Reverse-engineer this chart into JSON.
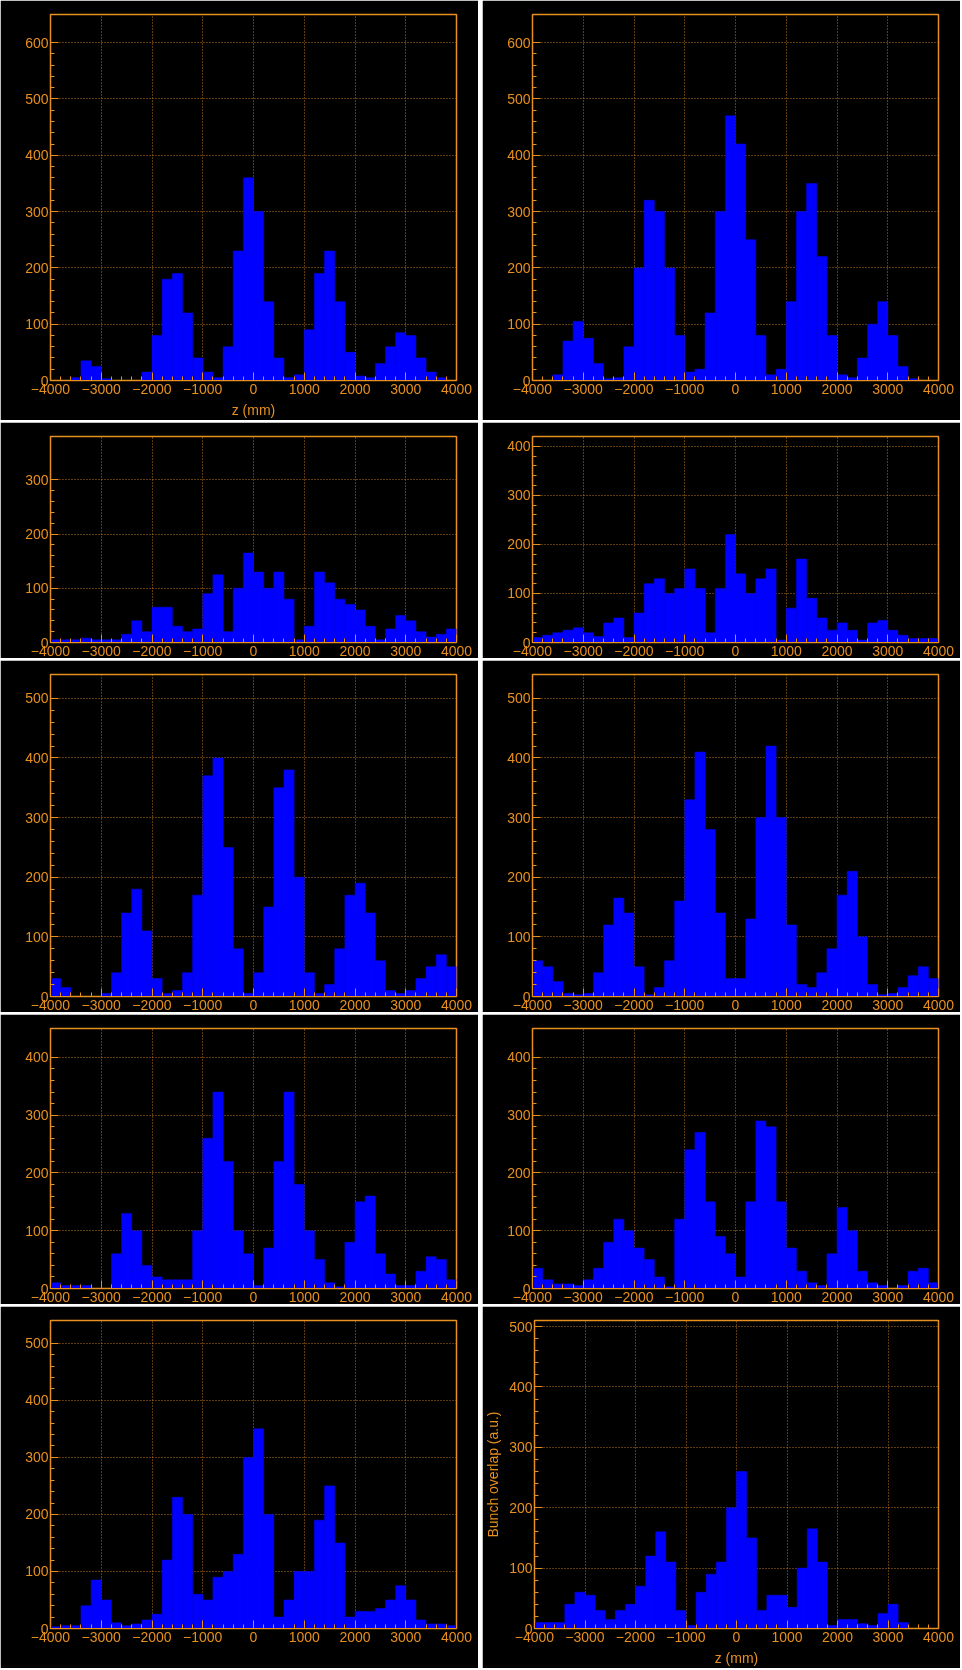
{
  "chart_data": [
    {
      "type": "histogram",
      "xlabel": "z (mm)",
      "color": "#0000ff",
      "grid": true,
      "xlim": [
        -4000,
        4000
      ],
      "xticks": [
        -4000,
        -3000,
        -2000,
        -1000,
        0,
        1000,
        2000,
        3000,
        4000
      ],
      "ylim": [
        0,
        650
      ],
      "yticks": [
        0,
        100,
        200,
        300,
        400,
        500,
        600
      ],
      "bins": [
        -4000,
        -3800,
        -3600,
        -3400,
        -3200,
        -3000,
        -2800,
        -2600,
        -2400,
        -2200,
        -2000,
        -1800,
        -1600,
        -1400,
        -1200,
        -1000,
        -800,
        -600,
        -400,
        -200,
        0,
        200,
        400,
        600,
        800,
        1000,
        1200,
        1400,
        1600,
        1800,
        2000,
        2200,
        2400,
        2600,
        2800,
        3000,
        3200,
        3400,
        3600,
        3800,
        4000
      ],
      "values": [
        0,
        0,
        5,
        35,
        25,
        3,
        0,
        0,
        0,
        15,
        80,
        180,
        190,
        120,
        40,
        15,
        5,
        60,
        230,
        360,
        300,
        140,
        40,
        5,
        10,
        90,
        190,
        230,
        140,
        50,
        8,
        5,
        30,
        60,
        85,
        80,
        40,
        15,
        5,
        0
      ]
    },
    {
      "type": "histogram",
      "color": "#0000ff",
      "grid": true,
      "xlim": [
        -4000,
        4000
      ],
      "xticks": [
        -4000,
        -3000,
        -2000,
        -1000,
        0,
        1000,
        2000,
        3000,
        4000
      ],
      "ylim": [
        0,
        650
      ],
      "yticks": [
        0,
        100,
        200,
        300,
        400,
        500,
        600
      ],
      "bins": [
        -4000,
        -3800,
        -3600,
        -3400,
        -3200,
        -3000,
        -2800,
        -2600,
        -2400,
        -2200,
        -2000,
        -1800,
        -1600,
        -1400,
        -1200,
        -1000,
        -800,
        -600,
        -400,
        -200,
        0,
        200,
        400,
        600,
        800,
        1000,
        1200,
        1400,
        1600,
        1800,
        2000,
        2200,
        2400,
        2600,
        2800,
        3000,
        3200,
        3400,
        3600,
        3800,
        4000
      ],
      "values": [
        0,
        0,
        10,
        70,
        105,
        75,
        30,
        3,
        5,
        60,
        200,
        320,
        300,
        200,
        80,
        15,
        20,
        120,
        300,
        470,
        420,
        250,
        80,
        10,
        20,
        140,
        300,
        350,
        220,
        80,
        10,
        5,
        40,
        100,
        140,
        80,
        25,
        3,
        0,
        0
      ]
    },
    {
      "type": "histogram",
      "color": "#0000ff",
      "grid": true,
      "xlim": [
        -4000,
        4000
      ],
      "xticks": [
        -4000,
        -3000,
        -2000,
        -1000,
        0,
        1000,
        2000,
        3000,
        4000
      ],
      "ylim": [
        0,
        380
      ],
      "yticks": [
        0,
        100,
        200,
        300
      ],
      "bins": [
        -4000,
        -3800,
        -3600,
        -3400,
        -3200,
        -3000,
        -2800,
        -2600,
        -2400,
        -2200,
        -2000,
        -1800,
        -1600,
        -1400,
        -1200,
        -1000,
        -800,
        -600,
        -400,
        -200,
        0,
        200,
        400,
        600,
        800,
        1000,
        1200,
        1400,
        1600,
        1800,
        2000,
        2200,
        2400,
        2600,
        2800,
        3000,
        3200,
        3400,
        3600,
        3800,
        4000
      ],
      "values": [
        5,
        5,
        5,
        8,
        5,
        5,
        5,
        15,
        40,
        20,
        65,
        65,
        30,
        20,
        25,
        90,
        125,
        20,
        100,
        165,
        130,
        100,
        130,
        80,
        5,
        30,
        130,
        110,
        80,
        70,
        60,
        30,
        5,
        25,
        50,
        40,
        20,
        10,
        15,
        25
      ]
    },
    {
      "type": "histogram",
      "color": "#0000ff",
      "grid": true,
      "xlim": [
        -4000,
        4000
      ],
      "xticks": [
        -4000,
        -3000,
        -2000,
        -1000,
        0,
        1000,
        2000,
        3000,
        4000
      ],
      "ylim": [
        0,
        420
      ],
      "yticks": [
        0,
        100,
        200,
        300,
        400
      ],
      "bins": [
        -4000,
        -3800,
        -3600,
        -3400,
        -3200,
        -3000,
        -2800,
        -2600,
        -2400,
        -2200,
        -2000,
        -1800,
        -1600,
        -1400,
        -1200,
        -1000,
        -800,
        -600,
        -400,
        -200,
        0,
        200,
        400,
        600,
        800,
        1000,
        1200,
        1400,
        1600,
        1800,
        2000,
        2200,
        2400,
        2600,
        2800,
        3000,
        3200,
        3400,
        3600,
        3800,
        4000
      ],
      "values": [
        10,
        15,
        20,
        25,
        30,
        20,
        12,
        40,
        50,
        10,
        60,
        120,
        130,
        100,
        110,
        150,
        110,
        20,
        110,
        220,
        140,
        100,
        130,
        150,
        5,
        70,
        170,
        90,
        50,
        25,
        40,
        25,
        5,
        40,
        45,
        25,
        15,
        8,
        8,
        8
      ]
    },
    {
      "type": "histogram",
      "color": "#0000ff",
      "grid": true,
      "xlim": [
        -4000,
        4000
      ],
      "xticks": [
        -4000,
        -3000,
        -2000,
        -1000,
        0,
        1000,
        2000,
        3000,
        4000
      ],
      "ylim": [
        0,
        540
      ],
      "yticks": [
        0,
        100,
        200,
        300,
        400,
        500
      ],
      "bins": [
        -4000,
        -3800,
        -3600,
        -3400,
        -3200,
        -3000,
        -2800,
        -2600,
        -2400,
        -2200,
        -2000,
        -1800,
        -1600,
        -1400,
        -1200,
        -1000,
        -800,
        -600,
        -400,
        -200,
        0,
        200,
        400,
        600,
        800,
        1000,
        1200,
        1400,
        1600,
        1800,
        2000,
        2200,
        2400,
        2600,
        2800,
        3000,
        3200,
        3400,
        3600,
        3800,
        4000
      ],
      "values": [
        30,
        15,
        0,
        0,
        0,
        5,
        40,
        140,
        180,
        110,
        30,
        5,
        10,
        40,
        170,
        370,
        400,
        250,
        80,
        5,
        40,
        150,
        350,
        380,
        200,
        40,
        5,
        20,
        80,
        170,
        190,
        140,
        60,
        10,
        5,
        10,
        30,
        50,
        70,
        50
      ]
    },
    {
      "type": "histogram",
      "color": "#0000ff",
      "grid": true,
      "xlim": [
        -4000,
        4000
      ],
      "xticks": [
        -4000,
        -3000,
        -2000,
        -1000,
        0,
        1000,
        2000,
        3000,
        4000
      ],
      "ylim": [
        0,
        540
      ],
      "yticks": [
        0,
        100,
        200,
        300,
        400,
        500
      ],
      "bins": [
        -4000,
        -3800,
        -3600,
        -3400,
        -3200,
        -3000,
        -2800,
        -2600,
        -2400,
        -2200,
        -2000,
        -1800,
        -1600,
        -1400,
        -1200,
        -1000,
        -800,
        -600,
        -400,
        -200,
        0,
        200,
        400,
        600,
        800,
        1000,
        1200,
        1400,
        1600,
        1800,
        2000,
        2200,
        2400,
        2600,
        2800,
        3000,
        3200,
        3400,
        3600,
        3800,
        4000
      ],
      "values": [
        60,
        50,
        25,
        5,
        3,
        5,
        40,
        120,
        165,
        140,
        50,
        3,
        15,
        60,
        160,
        330,
        410,
        280,
        140,
        30,
        30,
        130,
        300,
        420,
        300,
        120,
        20,
        15,
        40,
        80,
        170,
        210,
        100,
        20,
        3,
        5,
        15,
        35,
        50,
        30
      ]
    },
    {
      "type": "histogram",
      "color": "#0000ff",
      "grid": true,
      "xlim": [
        -4000,
        4000
      ],
      "xticks": [
        -4000,
        -3000,
        -2000,
        -1000,
        0,
        1000,
        2000,
        3000,
        4000
      ],
      "ylim": [
        0,
        450
      ],
      "yticks": [
        0,
        100,
        200,
        300,
        400
      ],
      "bins": [
        -4000,
        -3800,
        -3600,
        -3400,
        -3200,
        -3000,
        -2800,
        -2600,
        -2400,
        -2200,
        -2000,
        -1800,
        -1600,
        -1400,
        -1200,
        -1000,
        -800,
        -600,
        -400,
        -200,
        0,
        200,
        400,
        600,
        800,
        1000,
        1200,
        1400,
        1600,
        1800,
        2000,
        2200,
        2400,
        2600,
        2800,
        3000,
        3200,
        3400,
        3600,
        3800,
        4000
      ],
      "values": [
        10,
        5,
        5,
        5,
        0,
        0,
        60,
        130,
        100,
        40,
        20,
        15,
        15,
        15,
        100,
        260,
        340,
        220,
        100,
        60,
        5,
        70,
        220,
        340,
        180,
        100,
        50,
        10,
        3,
        80,
        150,
        160,
        60,
        25,
        5,
        5,
        30,
        55,
        50,
        15
      ]
    },
    {
      "type": "histogram",
      "color": "#0000ff",
      "grid": true,
      "xlim": [
        -4000,
        4000
      ],
      "xticks": [
        -4000,
        -3000,
        -2000,
        -1000,
        0,
        1000,
        2000,
        3000,
        4000
      ],
      "ylim": [
        0,
        450
      ],
      "yticks": [
        0,
        100,
        200,
        300,
        400
      ],
      "bins": [
        -4000,
        -3800,
        -3600,
        -3400,
        -3200,
        -3000,
        -2800,
        -2600,
        -2400,
        -2200,
        -2000,
        -1800,
        -1600,
        -1400,
        -1200,
        -1000,
        -800,
        -600,
        -400,
        -200,
        0,
        200,
        400,
        600,
        800,
        1000,
        1200,
        1400,
        1600,
        1800,
        2000,
        2200,
        2400,
        2600,
        2800,
        3000,
        3200,
        3400,
        3600,
        3800,
        4000
      ],
      "values": [
        35,
        15,
        8,
        8,
        5,
        15,
        35,
        80,
        120,
        100,
        70,
        50,
        20,
        3,
        120,
        240,
        270,
        150,
        90,
        60,
        20,
        150,
        290,
        280,
        150,
        70,
        30,
        10,
        5,
        60,
        140,
        100,
        30,
        10,
        5,
        0,
        5,
        30,
        35,
        10
      ]
    },
    {
      "type": "histogram",
      "color": "#0000ff",
      "grid": true,
      "xlim": [
        -4000,
        4000
      ],
      "xticks": [
        -4000,
        -3000,
        -2000,
        -1000,
        0,
        1000,
        2000,
        3000,
        4000
      ],
      "ylim": [
        0,
        540
      ],
      "yticks": [
        0,
        100,
        200,
        300,
        400,
        500
      ],
      "bins": [
        -4000,
        -3800,
        -3600,
        -3400,
        -3200,
        -3000,
        -2800,
        -2600,
        -2400,
        -2200,
        -2000,
        -1800,
        -1600,
        -1400,
        -1200,
        -1000,
        -800,
        -600,
        -400,
        -200,
        0,
        200,
        400,
        600,
        800,
        1000,
        1200,
        1400,
        1600,
        1800,
        2000,
        2200,
        2400,
        2600,
        2800,
        3000,
        3200,
        3400,
        3600,
        3800,
        4000
      ],
      "values": [
        3,
        5,
        5,
        40,
        85,
        50,
        10,
        5,
        8,
        15,
        25,
        120,
        230,
        200,
        60,
        50,
        90,
        100,
        130,
        300,
        350,
        200,
        20,
        50,
        100,
        100,
        190,
        250,
        150,
        20,
        30,
        30,
        35,
        50,
        75,
        50,
        15,
        8,
        8,
        5
      ]
    },
    {
      "type": "histogram",
      "xlabel": "z (mm)",
      "ylabel": "Bunch overlap (a.u.)",
      "color": "#0000ff",
      "grid": true,
      "xlim": [
        -4000,
        4000
      ],
      "xticks": [
        -4000,
        -3000,
        -2000,
        -1000,
        0,
        1000,
        2000,
        3000,
        4000
      ],
      "ylim": [
        0,
        510
      ],
      "yticks": [
        0,
        100,
        200,
        300,
        400,
        500
      ],
      "bins": [
        -4000,
        -3800,
        -3600,
        -3400,
        -3200,
        -3000,
        -2800,
        -2600,
        -2400,
        -2200,
        -2000,
        -1800,
        -1600,
        -1400,
        -1200,
        -1000,
        -800,
        -600,
        -400,
        -200,
        0,
        200,
        400,
        600,
        800,
        1000,
        1200,
        1400,
        1600,
        1800,
        2000,
        2200,
        2400,
        2600,
        2800,
        3000,
        3200,
        3400,
        3600,
        3800,
        4000
      ],
      "values": [
        10,
        10,
        10,
        40,
        60,
        55,
        30,
        15,
        30,
        40,
        70,
        120,
        160,
        110,
        30,
        5,
        60,
        90,
        110,
        200,
        260,
        150,
        30,
        55,
        55,
        35,
        100,
        165,
        110,
        5,
        15,
        15,
        8,
        5,
        25,
        40,
        10,
        0,
        0,
        0
      ]
    }
  ]
}
